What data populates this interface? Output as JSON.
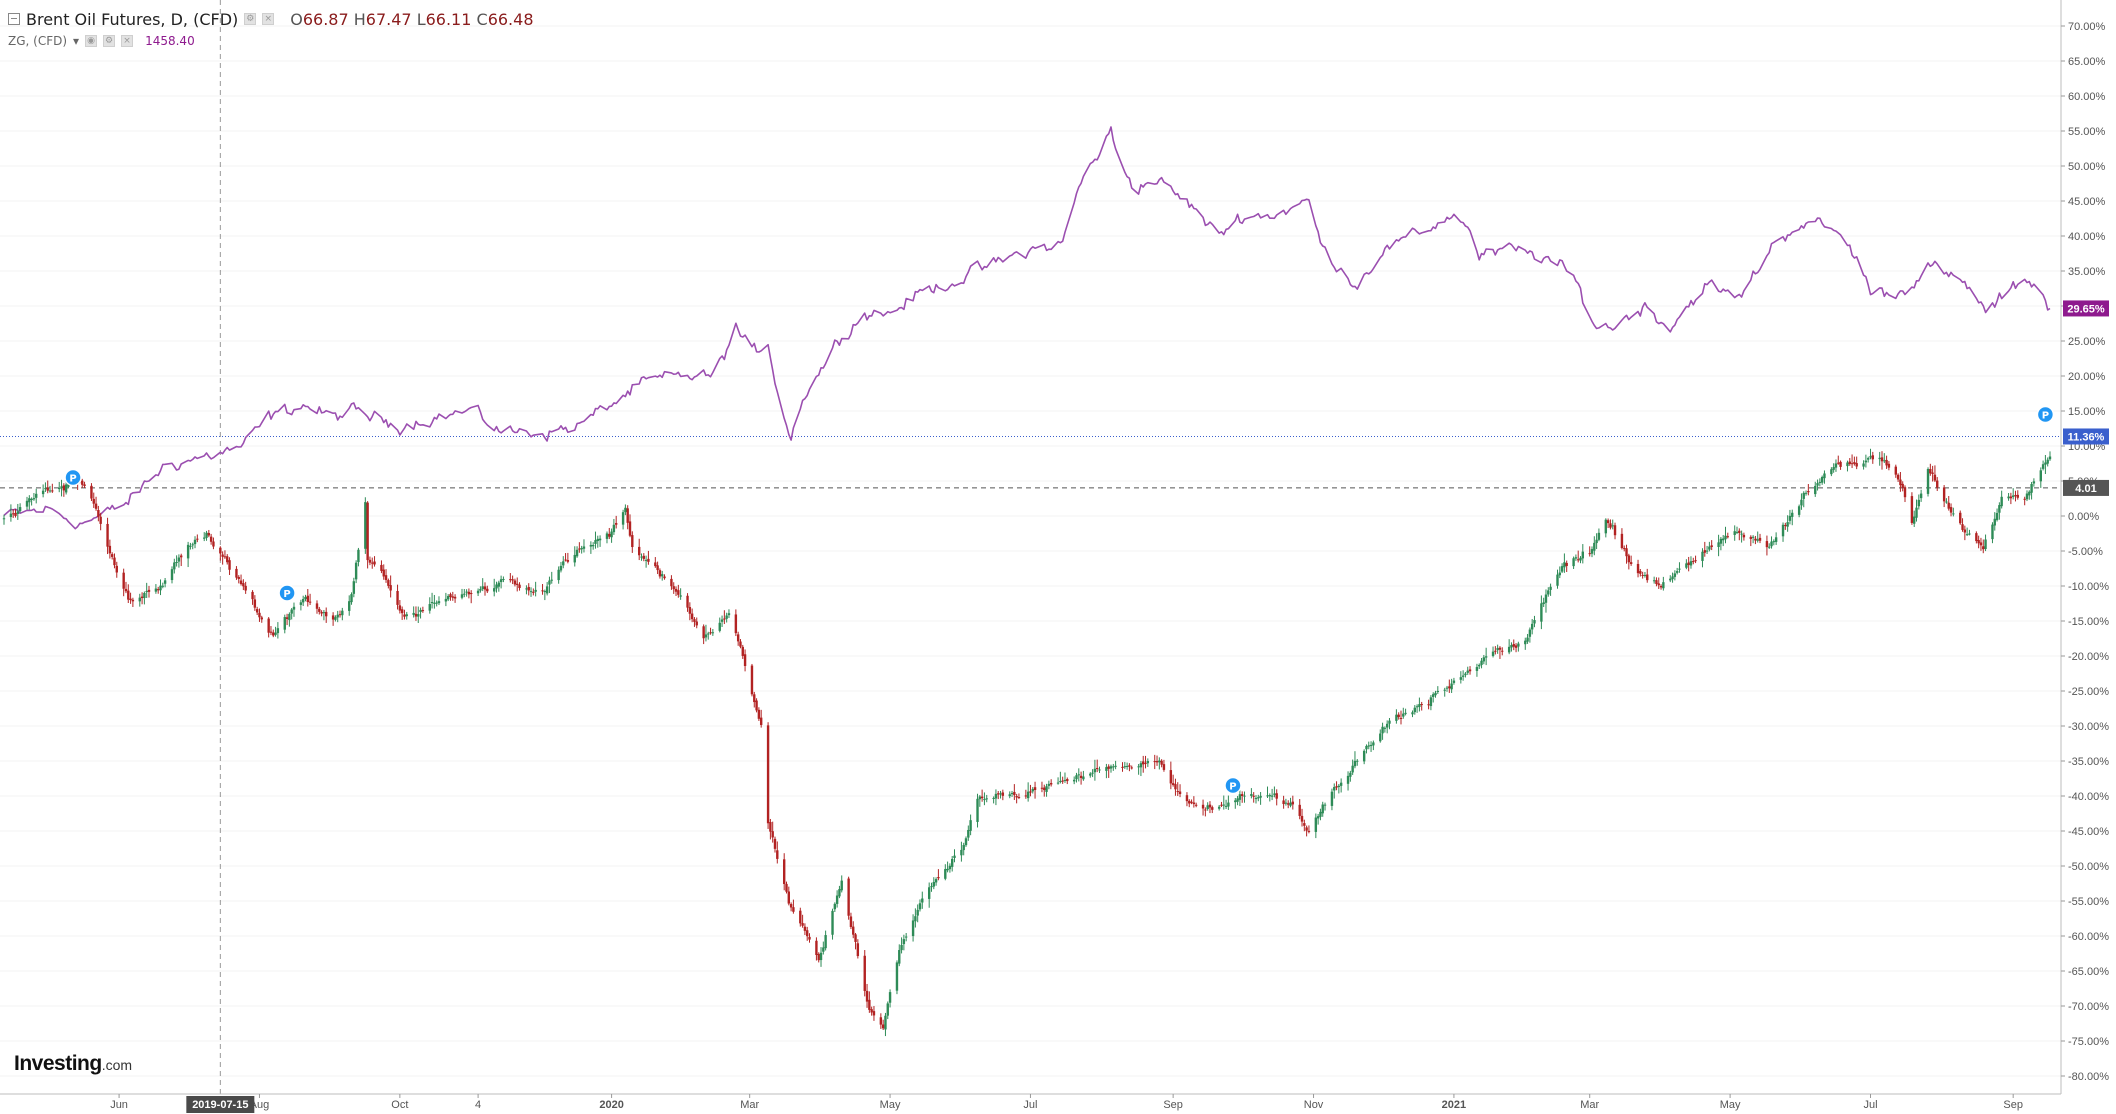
{
  "legend": {
    "main_symbol": "Brent Oil Futures, D, (CFD)",
    "ohlc": {
      "o_label": "O",
      "o": "66.87",
      "h_label": "H",
      "h": "67.47",
      "l_label": "L",
      "l": "66.11",
      "c_label": "C",
      "c": "66.48"
    },
    "sub_symbol": "ZG, (CFD)",
    "sub_value": "1458.40",
    "caret": "▾"
  },
  "watermark": {
    "brand": "Investing",
    "suffix": ".com"
  },
  "colors": {
    "up": "#2e8b57",
    "down": "#b22222",
    "zg_line": "#9b4fb0",
    "zg_badge": "#8e1a8e",
    "hline_blue": "#3a5fcd",
    "hline_grey": "#888888",
    "pin": "#2196f3",
    "cursor": "#999999"
  },
  "chart_data": {
    "type": "line",
    "x_range": [
      "2019-04-12",
      "2021-09-17"
    ],
    "ylim": [
      -82,
      72
    ],
    "y_unit": "%",
    "yticks": [
      70,
      65,
      60,
      55,
      50,
      45,
      40,
      35,
      30,
      25,
      20,
      15,
      10,
      5,
      0,
      -5,
      -10,
      -15,
      -20,
      -25,
      -30,
      -35,
      -40,
      -45,
      -50,
      -55,
      -60,
      -65,
      -70,
      -75,
      -80
    ],
    "ytick_labels": [
      "70.00%",
      "65.00%",
      "60.00%",
      "55.00%",
      "50.00%",
      "45.00%",
      "40.00%",
      "35.00%",
      "30.00%",
      "25.00%",
      "20.00%",
      "15.00%",
      "10.00%",
      "5.00%",
      "0.00%",
      "-5.00%",
      "-10.00%",
      "-15.00%",
      "-20.00%",
      "-25.00%",
      "-30.00%",
      "-35.00%",
      "-40.00%",
      "-45.00%",
      "-50.00%",
      "-55.00%",
      "-60.00%",
      "-65.00%",
      "-70.00%",
      "-75.00%",
      "-80.00%"
    ],
    "xticks": [
      {
        "date": "2019-06-01",
        "label": "Jun",
        "bold": false
      },
      {
        "date": "2019-08-01",
        "label": "Aug",
        "bold": false
      },
      {
        "date": "2019-10-01",
        "label": "Oct",
        "bold": false
      },
      {
        "date": "2019-11-04",
        "label": "4",
        "bold": false
      },
      {
        "date": "2020-01-01",
        "label": "2020",
        "bold": true
      },
      {
        "date": "2020-03-01",
        "label": "Mar",
        "bold": false
      },
      {
        "date": "2020-05-01",
        "label": "May",
        "bold": false
      },
      {
        "date": "2020-07-01",
        "label": "Jul",
        "bold": false
      },
      {
        "date": "2020-09-01",
        "label": "Sep",
        "bold": false
      },
      {
        "date": "2020-11-01",
        "label": "Nov",
        "bold": false
      },
      {
        "date": "2021-01-01",
        "label": "2021",
        "bold": true
      },
      {
        "date": "2021-03-01",
        "label": "Mar",
        "bold": false
      },
      {
        "date": "2021-05-01",
        "label": "May",
        "bold": false
      },
      {
        "date": "2021-07-01",
        "label": "Jul",
        "bold": false
      },
      {
        "date": "2021-09-01",
        "label": "Sep",
        "bold": false
      }
    ],
    "cursor": {
      "date": "2019-07-15",
      "label": "2019-07-15"
    },
    "series": [
      {
        "kind": "candlestick",
        "color_up": "#2e8b57",
        "color_down": "#b22222",
        "anchors": [
          [
            "2019-04-12",
            -0.5
          ],
          [
            "2019-05-01",
            4
          ],
          [
            "2019-05-15",
            5
          ],
          [
            "2019-05-22",
            1
          ],
          [
            "2019-05-31",
            -8
          ],
          [
            "2019-06-05",
            -12
          ],
          [
            "2019-06-18",
            -11
          ],
          [
            "2019-07-01",
            -4
          ],
          [
            "2019-07-10",
            -3
          ],
          [
            "2019-07-15",
            -6
          ],
          [
            "2019-07-22",
            -9
          ],
          [
            "2019-08-07",
            -17
          ],
          [
            "2019-08-20",
            -12
          ],
          [
            "2019-09-03",
            -15
          ],
          [
            "2019-09-10",
            -11
          ],
          [
            "2019-09-16",
            2
          ],
          [
            "2019-09-17",
            -6
          ],
          [
            "2019-09-24",
            -8
          ],
          [
            "2019-10-03",
            -15
          ],
          [
            "2019-10-15",
            -13
          ],
          [
            "2019-11-01",
            -11
          ],
          [
            "2019-11-15",
            -9
          ],
          [
            "2019-12-02",
            -10
          ],
          [
            "2019-12-15",
            -6
          ],
          [
            "2020-01-02",
            -2
          ],
          [
            "2020-01-07",
            1
          ],
          [
            "2020-01-10",
            -5
          ],
          [
            "2020-01-20",
            -7
          ],
          [
            "2020-02-03",
            -13
          ],
          [
            "2020-02-10",
            -18
          ],
          [
            "2020-02-21",
            -14
          ],
          [
            "2020-03-02",
            -25
          ],
          [
            "2020-03-06",
            -30
          ],
          [
            "2020-03-09",
            -44
          ],
          [
            "2020-03-18",
            -55
          ],
          [
            "2020-03-31",
            -63
          ],
          [
            "2020-04-10",
            -52
          ],
          [
            "2020-04-21",
            -69
          ],
          [
            "2020-04-28",
            -73
          ],
          [
            "2020-05-05",
            -62
          ],
          [
            "2020-05-18",
            -53
          ],
          [
            "2020-06-01",
            -48
          ],
          [
            "2020-06-08",
            -40
          ],
          [
            "2020-06-22",
            -40
          ],
          [
            "2020-07-15",
            -38
          ],
          [
            "2020-08-05",
            -36
          ],
          [
            "2020-08-26",
            -35
          ],
          [
            "2020-09-04",
            -40
          ],
          [
            "2020-09-15",
            -42
          ],
          [
            "2020-10-01",
            -40
          ],
          [
            "2020-10-15",
            -39
          ],
          [
            "2020-10-30",
            -45
          ],
          [
            "2020-11-06",
            -41
          ],
          [
            "2020-11-20",
            -35
          ],
          [
            "2020-12-01",
            -30
          ],
          [
            "2020-12-15",
            -27
          ],
          [
            "2020-12-31",
            -24
          ],
          [
            "2021-01-15",
            -20
          ],
          [
            "2021-02-01",
            -18
          ],
          [
            "2021-02-15",
            -8
          ],
          [
            "2021-03-01",
            -5
          ],
          [
            "2021-03-08",
            0
          ],
          [
            "2021-03-18",
            -6
          ],
          [
            "2021-03-25",
            -9
          ],
          [
            "2021-04-01",
            -10
          ],
          [
            "2021-04-15",
            -6
          ],
          [
            "2021-05-03",
            -2
          ],
          [
            "2021-05-18",
            -4
          ],
          [
            "2021-06-01",
            2
          ],
          [
            "2021-06-15",
            7
          ],
          [
            "2021-07-05",
            9
          ],
          [
            "2021-07-15",
            4
          ],
          [
            "2021-07-19",
            -1
          ],
          [
            "2021-07-26",
            7
          ],
          [
            "2021-08-05",
            1
          ],
          [
            "2021-08-19",
            -5
          ],
          [
            "2021-08-27",
            2
          ],
          [
            "2021-09-06",
            3
          ],
          [
            "2021-09-14",
            7
          ],
          [
            "2021-09-17",
            8.5
          ]
        ]
      },
      {
        "name": "ZG, (CFD)",
        "kind": "line",
        "anchors": [
          [
            "2019-04-12",
            0
          ],
          [
            "2019-05-01",
            1
          ],
          [
            "2019-05-15",
            -1
          ],
          [
            "2019-05-25",
            0
          ],
          [
            "2019-06-05",
            2
          ],
          [
            "2019-06-20",
            7
          ],
          [
            "2019-07-01",
            8
          ],
          [
            "2019-07-15",
            9
          ],
          [
            "2019-07-25",
            10
          ],
          [
            "2019-08-05",
            14
          ],
          [
            "2019-08-20",
            16
          ],
          [
            "2019-09-01",
            14
          ],
          [
            "2019-09-10",
            15
          ],
          [
            "2019-09-20",
            14
          ],
          [
            "2019-10-01",
            13
          ],
          [
            "2019-10-15",
            14
          ],
          [
            "2019-11-01",
            15
          ],
          [
            "2019-11-15",
            12
          ],
          [
            "2019-11-25",
            12
          ],
          [
            "2019-12-05",
            12
          ],
          [
            "2019-12-18",
            13
          ],
          [
            "2020-01-01",
            16
          ],
          [
            "2020-01-15",
            19
          ],
          [
            "2020-02-01",
            20
          ],
          [
            "2020-02-15",
            20
          ],
          [
            "2020-02-24",
            27
          ],
          [
            "2020-03-02",
            23
          ],
          [
            "2020-03-09",
            25
          ],
          [
            "2020-03-13",
            18
          ],
          [
            "2020-03-19",
            11
          ],
          [
            "2020-03-24",
            17
          ],
          [
            "2020-04-01",
            21
          ],
          [
            "2020-04-10",
            26
          ],
          [
            "2020-04-20",
            29
          ],
          [
            "2020-05-01",
            29
          ],
          [
            "2020-05-15",
            32
          ],
          [
            "2020-06-01",
            34
          ],
          [
            "2020-06-15",
            36
          ],
          [
            "2020-07-01",
            38
          ],
          [
            "2020-07-15",
            39
          ],
          [
            "2020-07-22",
            47
          ],
          [
            "2020-08-05",
            55
          ],
          [
            "2020-08-07",
            52
          ],
          [
            "2020-08-15",
            47
          ],
          [
            "2020-08-25",
            48
          ],
          [
            "2020-09-10",
            44
          ],
          [
            "2020-09-20",
            40
          ],
          [
            "2020-10-01",
            43
          ],
          [
            "2020-10-15",
            43
          ],
          [
            "2020-10-30",
            45
          ],
          [
            "2020-11-05",
            38
          ],
          [
            "2020-11-20",
            33
          ],
          [
            "2020-12-01",
            38
          ],
          [
            "2020-12-15",
            40
          ],
          [
            "2020-12-31",
            43
          ],
          [
            "2021-01-06",
            42
          ],
          [
            "2021-01-12",
            37
          ],
          [
            "2021-01-25",
            38
          ],
          [
            "2021-02-10",
            37
          ],
          [
            "2021-02-22",
            34
          ],
          [
            "2021-03-04",
            27
          ],
          [
            "2021-03-10",
            27
          ],
          [
            "2021-03-25",
            30
          ],
          [
            "2021-04-05",
            27
          ],
          [
            "2021-04-20",
            33
          ],
          [
            "2021-05-05",
            31
          ],
          [
            "2021-05-20",
            39
          ],
          [
            "2021-06-01",
            42
          ],
          [
            "2021-06-15",
            41
          ],
          [
            "2021-06-25",
            37
          ],
          [
            "2021-07-01",
            32
          ],
          [
            "2021-07-15",
            32
          ],
          [
            "2021-07-26",
            36
          ],
          [
            "2021-08-05",
            34
          ],
          [
            "2021-08-15",
            32
          ],
          [
            "2021-08-20",
            29
          ],
          [
            "2021-08-27",
            31
          ],
          [
            "2021-09-06",
            34
          ],
          [
            "2021-09-12",
            33
          ],
          [
            "2021-09-17",
            29.65
          ]
        ]
      }
    ],
    "hlines": [
      {
        "value": 11.36,
        "label": "11.36%",
        "color": "#3a5fcd",
        "style": "dotted"
      },
      {
        "value": 4.01,
        "label": "4.01",
        "color": "#555555",
        "style": "dashed"
      }
    ],
    "last_badges": [
      {
        "value": 29.65,
        "label": "29.65%",
        "color": "#8e1a8e"
      }
    ],
    "pins": [
      {
        "date": "2019-05-12",
        "value": 5.5,
        "label": "P"
      },
      {
        "date": "2019-08-13",
        "value": -11,
        "label": "P"
      },
      {
        "date": "2020-09-27",
        "value": -38.5,
        "label": "P"
      },
      {
        "date": "2021-09-15",
        "value": 14.5,
        "label": "P"
      }
    ]
  }
}
